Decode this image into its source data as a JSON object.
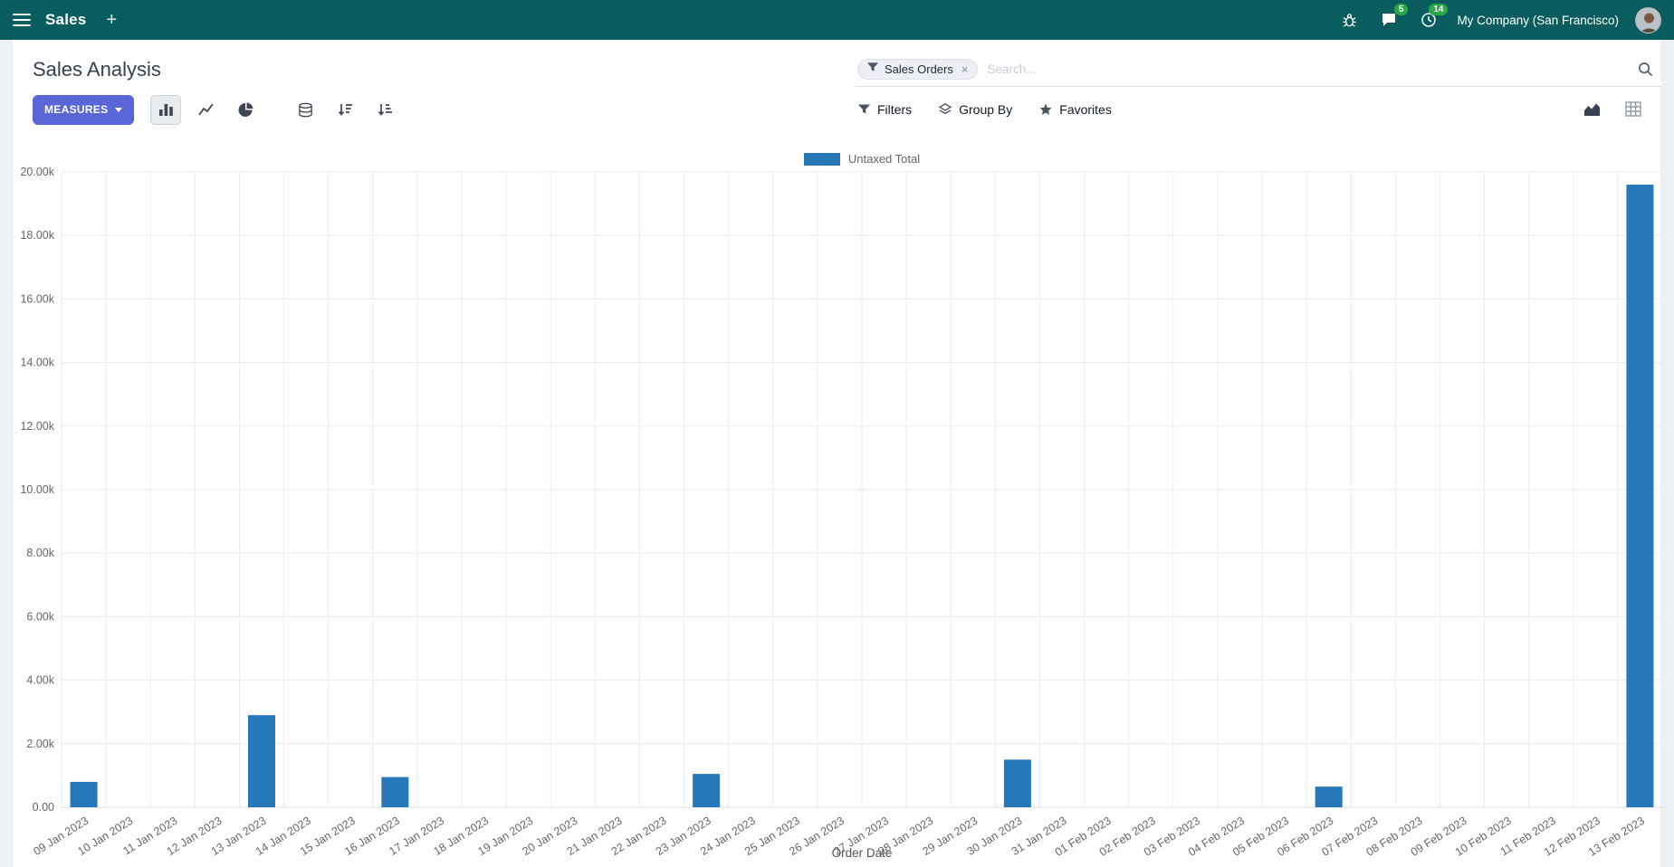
{
  "colors": {
    "navbar_bg": "#095d5e",
    "primary_button": "#5b66d6",
    "badge_green": "#28a745",
    "bar_color": "#2678b8"
  },
  "navbar": {
    "app_name": "Sales",
    "messages_badge": "5",
    "activities_badge": "14",
    "company": "My Company (San Francisco)"
  },
  "control_panel": {
    "title": "Sales Analysis",
    "measures_button": "MEASURES",
    "filters": "Filters",
    "group_by": "Group By",
    "favorites": "Favorites",
    "search": {
      "facet": "Sales Orders",
      "facet_remove": "×",
      "placeholder": "Search..."
    }
  },
  "chart_data": {
    "type": "bar",
    "legend": "Untaxed Total",
    "series_color": "#2678b8",
    "xlabel": "Order Date",
    "ylabel": "",
    "ylim": [
      0,
      20000
    ],
    "ytick_step": 2000,
    "ytick_labels": [
      "0.00",
      "2.00k",
      "4.00k",
      "6.00k",
      "8.00k",
      "10.00k",
      "12.00k",
      "14.00k",
      "16.00k",
      "18.00k",
      "20.00k"
    ],
    "grid": true,
    "legend_position": "top-center",
    "categories": [
      "09 Jan 2023",
      "10 Jan 2023",
      "11 Jan 2023",
      "12 Jan 2023",
      "13 Jan 2023",
      "14 Jan 2023",
      "15 Jan 2023",
      "16 Jan 2023",
      "17 Jan 2023",
      "18 Jan 2023",
      "19 Jan 2023",
      "20 Jan 2023",
      "21 Jan 2023",
      "22 Jan 2023",
      "23 Jan 2023",
      "24 Jan 2023",
      "25 Jan 2023",
      "26 Jan 2023",
      "27 Jan 2023",
      "28 Jan 2023",
      "29 Jan 2023",
      "30 Jan 2023",
      "31 Jan 2023",
      "01 Feb 2023",
      "02 Feb 2023",
      "03 Feb 2023",
      "04 Feb 2023",
      "05 Feb 2023",
      "06 Feb 2023",
      "07 Feb 2023",
      "08 Feb 2023",
      "09 Feb 2023",
      "10 Feb 2023",
      "11 Feb 2023",
      "12 Feb 2023",
      "13 Feb 2023"
    ],
    "values": [
      800,
      0,
      0,
      0,
      2900,
      0,
      0,
      950,
      0,
      0,
      0,
      0,
      0,
      0,
      1050,
      0,
      0,
      0,
      0,
      0,
      0,
      1500,
      0,
      0,
      0,
      0,
      0,
      0,
      650,
      0,
      0,
      0,
      0,
      0,
      0,
      19600
    ]
  }
}
